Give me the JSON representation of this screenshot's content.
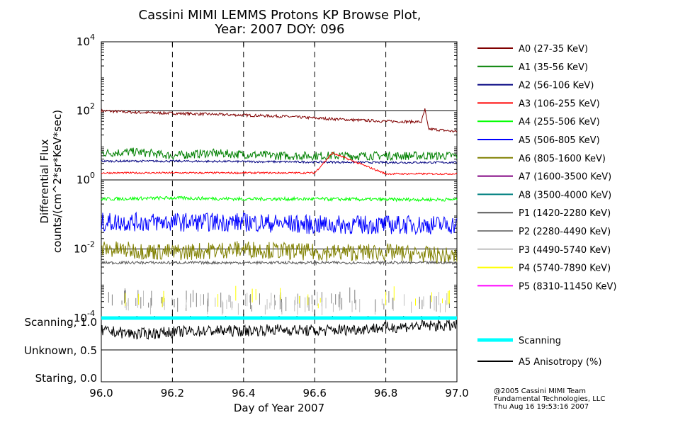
{
  "title": {
    "line1": "Cassini MIMI LEMMS Protons KP Browse Plot,",
    "line2": "Year: 2007 DOY: 096"
  },
  "y_axis_title": {
    "line1": "Differential Flux",
    "line2": "counts/(cm^2*sr*KeV*sec)"
  },
  "x_axis_title": "Day of Year 2007",
  "x_tick_labels": [
    "96.0",
    "96.2",
    "96.4",
    "96.6",
    "96.8",
    "97.0"
  ],
  "y_tick_labels": [
    {
      "base": "10",
      "exp": "4"
    },
    {
      "base": "10",
      "exp": "2"
    },
    {
      "base": "10",
      "exp": "0",
      "plain": "1"
    },
    {
      "base": "10",
      "exp": "-2"
    },
    {
      "base": "10",
      "exp": "-4"
    }
  ],
  "state_labels": [
    "Scanning, 1.0",
    "Unknown, 0.5",
    "Staring, 0.0"
  ],
  "credits": [
    "@2005 Cassini MIMI Team",
    "Fundamental Technologies, LLC",
    "Thu Aug 16 19:53:16 2007"
  ],
  "chart_data": [
    {
      "type": "line",
      "x_label": "Day of Year 2007",
      "y_label": "Differential Flux counts/(cm^2*sr*KeV*sec)",
      "y_scale": "log",
      "xlim": [
        96.0,
        97.0
      ],
      "ylim": [
        0.0001,
        10000
      ],
      "x_ticks": [
        96.0,
        96.2,
        96.4,
        96.6,
        96.8,
        97.0
      ],
      "y_ticks": [
        0.0001,
        0.01,
        1,
        100,
        10000
      ],
      "vertical_gridlines": "dashed at 96.2, 96.4, 96.6, 96.8",
      "legend_position": "right",
      "series": [
        {
          "name": "A0 (27-35 KeV)",
          "color": "#800000",
          "x": [
            96.0,
            96.05,
            96.1,
            96.2,
            96.3,
            96.4,
            96.5,
            96.6,
            96.7,
            96.8,
            96.9,
            96.91,
            96.92,
            97.0
          ],
          "y": [
            100,
            95,
            90,
            85,
            80,
            75,
            70,
            62,
            55,
            50,
            48,
            110,
            30,
            25
          ]
        },
        {
          "name": "A1 (35-56 KeV)",
          "color": "#008000",
          "x": [
            96.0,
            96.1,
            96.2,
            96.3,
            96.4,
            96.5,
            96.6,
            96.7,
            96.8,
            96.9,
            97.0
          ],
          "y": [
            6,
            6.5,
            5,
            6,
            5.5,
            5,
            5,
            5,
            5,
            5,
            5
          ]
        },
        {
          "name": "A2 (56-106 KeV)",
          "color": "#000080",
          "x": [
            96.0,
            96.2,
            96.4,
            96.6,
            96.8,
            97.0
          ],
          "y": [
            3.5,
            3.5,
            3.4,
            3.3,
            3.2,
            3.2
          ]
        },
        {
          "name": "A3 (106-255 KeV)",
          "color": "#ff0000",
          "x": [
            96.0,
            96.2,
            96.4,
            96.6,
            96.65,
            96.8,
            97.0
          ],
          "y": [
            1.6,
            1.6,
            1.6,
            1.6,
            6,
            1.5,
            1.5
          ]
        },
        {
          "name": "A4 (255-506 KeV)",
          "color": "#00ff00",
          "x": [
            96.0,
            96.2,
            96.4,
            96.6,
            96.8,
            97.0
          ],
          "y": [
            0.28,
            0.3,
            0.28,
            0.28,
            0.27,
            0.27
          ]
        },
        {
          "name": "A5 (506-805 KeV)",
          "color": "#0000ff",
          "x": [
            96.0,
            96.2,
            96.4,
            96.6,
            96.8,
            97.0
          ],
          "y": [
            0.06,
            0.06,
            0.06,
            0.05,
            0.05,
            0.05
          ]
        },
        {
          "name": "A6 (805-1600 KeV)",
          "color": "#808000",
          "x": [
            96.0,
            96.2,
            96.4,
            96.6,
            96.8,
            97.0
          ],
          "y": [
            0.01,
            0.008,
            0.01,
            0.008,
            0.008,
            0.006
          ]
        },
        {
          "name": "A7 (1600-3500 KeV)",
          "color": "#800080",
          "x": [],
          "y": []
        },
        {
          "name": "A8 (3500-4000 KeV)",
          "color": "#008080",
          "x": [],
          "y": []
        },
        {
          "name": "P1 (1420-2280 KeV)",
          "color": "#595959",
          "x": [
            96.0,
            96.2,
            96.4,
            96.6,
            96.8,
            97.0
          ],
          "y": [
            0.004,
            0.004,
            0.004,
            0.004,
            0.004,
            0.004
          ]
        },
        {
          "name": "P2 (2280-4490 KeV)",
          "color": "#808080",
          "x": [
            96.0,
            96.2,
            96.4,
            96.6,
            96.8,
            97.0
          ],
          "y": [
            0.00025,
            0.00025,
            0.00025,
            0.00025,
            0.00025,
            0.00025
          ]
        },
        {
          "name": "P3 (4490-5740 KeV)",
          "color": "#c0c0c0",
          "x": [
            96.0,
            96.2,
            96.4,
            96.6,
            96.8,
            97.0
          ],
          "y": [
            0.0002,
            0.0002,
            0.0002,
            0.0002,
            0.0002,
            0.0002
          ]
        },
        {
          "name": "P4 (5740-7890 KeV)",
          "color": "#ffff00",
          "x": [
            96.05,
            96.2,
            96.4,
            96.55,
            96.75,
            96.9
          ],
          "y": [
            0.0003,
            0.0003,
            0.0003,
            0.0003,
            0.0003,
            0.0003
          ]
        },
        {
          "name": "P5 (8310-11450 KeV)",
          "color": "#ff00ff",
          "x": [],
          "y": []
        }
      ]
    },
    {
      "type": "line",
      "x_label": "Day of Year 2007",
      "xlim": [
        96.0,
        97.0
      ],
      "ylim": [
        0.0,
        1.0
      ],
      "y_ticks": [
        0.0,
        0.5,
        1.0
      ],
      "y_tick_labels": [
        "Staring, 0.0",
        "Unknown, 0.5",
        "Scanning, 1.0"
      ],
      "horizontal_gridlines": [
        0.5
      ],
      "legend_position": "right",
      "series": [
        {
          "name": "Scanning",
          "color": "#00ffff",
          "x": [
            96.0,
            97.0
          ],
          "y": [
            1.0,
            1.0
          ]
        },
        {
          "name": "A5 Anisotropy (%)",
          "color": "#000000",
          "x": [
            96.0,
            96.1,
            96.2,
            96.3,
            96.4,
            96.5,
            96.6,
            96.7,
            96.8,
            96.9,
            97.0
          ],
          "y": [
            0.8,
            0.75,
            0.78,
            0.8,
            0.8,
            0.82,
            0.8,
            0.82,
            0.85,
            0.88,
            0.88
          ]
        }
      ]
    }
  ]
}
